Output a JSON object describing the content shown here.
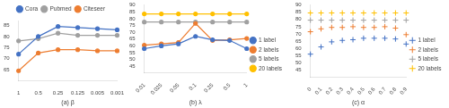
{
  "chart_data": [
    {
      "type": "line",
      "xlabel": "(a) β",
      "categories": [
        "1",
        "0.5",
        "0.25",
        "0.125",
        "0.005",
        "0.001"
      ],
      "series": [
        {
          "name": "Cora",
          "color": "#4472c4",
          "marker": "circle",
          "values": [
            72.0,
            80.0,
            84.5,
            84.0,
            83.5,
            83.0
          ]
        },
        {
          "name": "Pubmed",
          "color": "#a0a0a0",
          "marker": "circle",
          "values": [
            78.0,
            79.0,
            81.5,
            80.5,
            80.5,
            80.5
          ]
        },
        {
          "name": "Citeseer",
          "color": "#ed7d31",
          "marker": "circle",
          "values": [
            64.5,
            72.5,
            74.0,
            74.0,
            73.5,
            73.5
          ]
        }
      ],
      "ylim": [
        60,
        87
      ],
      "yticks": [
        65,
        70,
        75,
        80,
        85
      ],
      "grid": false,
      "legend": "top"
    },
    {
      "type": "line",
      "xlabel": "(b) λ",
      "categories": [
        "0.01",
        "0.025",
        "0.05",
        "0.1",
        "0.25",
        "0.5",
        "1"
      ],
      "series": [
        {
          "name": "1 label",
          "color": "#4472c4",
          "marker": "circle",
          "values": [
            58.0,
            60.0,
            61.5,
            67.0,
            64.5,
            64.0,
            58.0
          ]
        },
        {
          "name": "2 labels",
          "color": "#ed7d31",
          "marker": "circle",
          "values": [
            60.5,
            61.5,
            62.5,
            76.5,
            64.0,
            64.5,
            65.5
          ]
        },
        {
          "name": "5 labels",
          "color": "#a0a0a0",
          "marker": "circle",
          "values": [
            77.5,
            77.5,
            77.5,
            77.5,
            77.5,
            77.5,
            77.5
          ]
        },
        {
          "name": "20 labels",
          "color": "#ffc000",
          "marker": "circle",
          "values": [
            83.5,
            83.5,
            83.5,
            83.5,
            83.5,
            83.5,
            83.5
          ]
        }
      ],
      "ylim": [
        40,
        90
      ],
      "yticks": [
        45,
        50,
        55,
        60,
        65,
        70,
        75,
        80,
        85,
        90
      ],
      "grid": false,
      "legend": "right"
    },
    {
      "type": "scatter",
      "xlabel": "(c) α",
      "x": [
        0.0,
        0.1,
        0.2,
        0.3,
        0.4,
        0.5,
        0.6,
        0.7,
        0.8,
        0.9
      ],
      "xlim": [
        0.0,
        0.9
      ],
      "xticks": [
        0,
        0.1,
        0.2,
        0.3,
        0.4,
        0.5,
        0.6,
        0.7,
        0.8,
        0.9
      ],
      "series": [
        {
          "name": "1 label",
          "color": "#4472c4",
          "marker": "plus",
          "values": [
            56.0,
            61.0,
            64.5,
            65.5,
            66.0,
            67.0,
            67.0,
            67.0,
            66.5,
            63.0
          ]
        },
        {
          "name": "2 labels",
          "color": "#ed7d31",
          "marker": "plus",
          "values": [
            71.5,
            73.5,
            74.5,
            74.5,
            75.0,
            74.5,
            74.5,
            75.0,
            74.0,
            69.5
          ]
        },
        {
          "name": "5 labels",
          "color": "#a0a0a0",
          "marker": "plus",
          "values": [
            79.5,
            79.5,
            79.5,
            79.5,
            79.5,
            79.5,
            79.5,
            79.5,
            79.5,
            79.5
          ]
        },
        {
          "name": "20 labels",
          "color": "#ffc000",
          "marker": "plus",
          "values": [
            84.5,
            84.5,
            84.5,
            84.5,
            84.5,
            84.5,
            84.5,
            84.5,
            84.5,
            84.5
          ]
        }
      ],
      "ylim": [
        40,
        90
      ],
      "yticks": [
        45,
        50,
        55,
        60,
        65,
        70,
        75,
        80,
        85,
        90
      ],
      "grid": false,
      "legend": "right"
    }
  ]
}
